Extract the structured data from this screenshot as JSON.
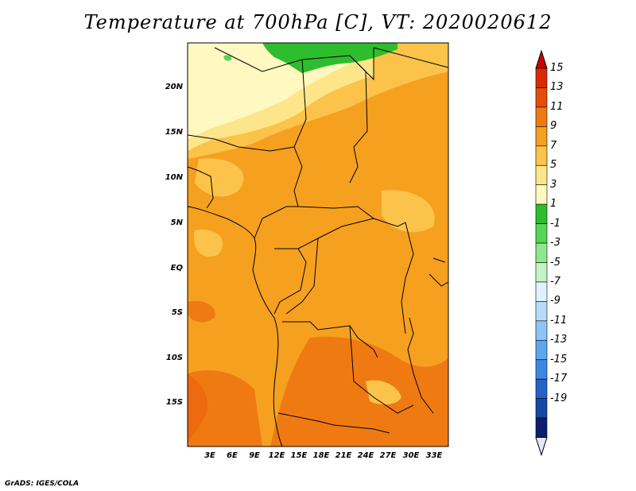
{
  "title": "Temperature at 700hPa [C], VT: 2020020612",
  "credit": "GrADS: IGES/COLA",
  "map": {
    "lat_ticks": [
      "20N",
      "15N",
      "10N",
      "5N",
      "EQ",
      "5S",
      "10S",
      "15S"
    ],
    "lon_ticks": [
      "3E",
      "6E",
      "9E",
      "12E",
      "15E",
      "18E",
      "21E",
      "24E",
      "27E",
      "30E",
      "33E"
    ]
  },
  "colorbar": {
    "labels": [
      "15",
      "13",
      "11",
      "9",
      "7",
      "5",
      "3",
      "1",
      "-1",
      "-3",
      "-5",
      "-7",
      "-9",
      "-11",
      "-13",
      "-15",
      "-17",
      "-19"
    ],
    "colors": [
      "#d82a05",
      "#e84c0a",
      "#f07a12",
      "#f6a020",
      "#fbc34a",
      "#fde58a",
      "#fff8c0",
      "#2dbd2d",
      "#55d655",
      "#8ee88e",
      "#c4f4c4",
      "#dff2ff",
      "#b7dcfa",
      "#8ec4f5",
      "#5ea7ee",
      "#3b88e4",
      "#2563c8",
      "#1846a6",
      "#0b1f6e"
    ],
    "top_arrow_color": "#c80000",
    "bottom_arrow_color": "#e6e6ff"
  }
}
